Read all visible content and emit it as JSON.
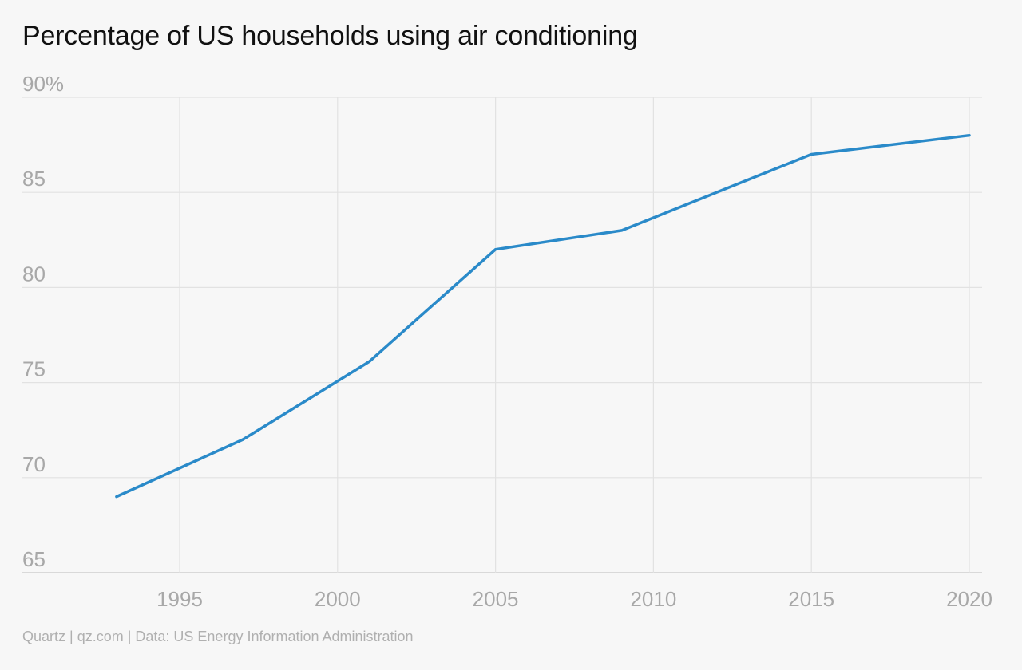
{
  "chart_data": {
    "type": "line",
    "title": "Percentage of US households using air conditioning",
    "xlabel": "",
    "ylabel": "",
    "x_ticks": [
      1995,
      2000,
      2005,
      2010,
      2015,
      2020
    ],
    "y_ticks": [
      65,
      70,
      75,
      80,
      85,
      90
    ],
    "y_tick_labels": [
      "65",
      "70",
      "75",
      "80",
      "85",
      "90%"
    ],
    "xlim": [
      1991,
      2020.5
    ],
    "ylim": [
      65,
      90
    ],
    "grid": true,
    "series": [
      {
        "x": [
          1993,
          1997,
          2001,
          2005,
          2009,
          2015,
          2020
        ],
        "y": [
          69,
          72,
          76.1,
          82,
          83,
          87,
          88
        ],
        "color": "#2a8ac9"
      }
    ]
  },
  "footer": {
    "source": "Quartz | qz.com | Data: US Energy Information Administration"
  },
  "colors": {
    "background": "#f7f7f7",
    "line": "#2a8ac9",
    "grid": "#e2e2e2",
    "tick_text": "#a8a8a8"
  }
}
